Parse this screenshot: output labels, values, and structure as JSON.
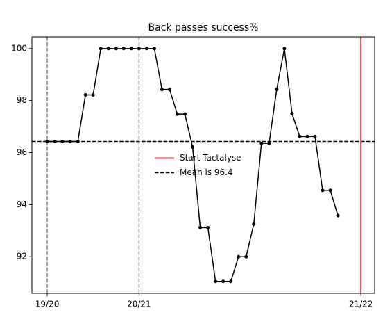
{
  "chart_data": {
    "type": "line",
    "title": "Back passes success%",
    "x": [
      0,
      1,
      2,
      3,
      4,
      5,
      6,
      7,
      8,
      9,
      10,
      11,
      12,
      13,
      14,
      15,
      16,
      17,
      18,
      19,
      20,
      21,
      22,
      23,
      24,
      25,
      26,
      27,
      28,
      29,
      30,
      31,
      32,
      33,
      34,
      35,
      36,
      37,
      38
    ],
    "series": [
      {
        "name": "Back passes success%",
        "color": "#000000",
        "values": [
          96.43,
          96.43,
          96.43,
          96.43,
          96.43,
          98.22,
          98.22,
          100,
          100,
          100,
          100,
          100,
          100,
          100,
          100,
          98.43,
          98.43,
          97.48,
          97.48,
          96.22,
          93.12,
          93.12,
          91.05,
          91.05,
          91.05,
          92,
          92,
          93.25,
          96.36,
          96.36,
          98.43,
          100,
          97.5,
          96.62,
          96.62,
          96.62,
          94.55,
          94.55,
          93.58
        ]
      }
    ],
    "xlim": [
      -2,
      42.8
    ],
    "ylim": [
      90.59,
      100.45
    ],
    "xticks": [
      {
        "value": 0,
        "label": "19/20"
      },
      {
        "value": 12,
        "label": "20/21"
      },
      {
        "value": 41,
        "label": "21/22"
      }
    ],
    "yticks": [
      92,
      94,
      96,
      98,
      100
    ],
    "xtick_lines": {
      "color": "#808080",
      "dashed": true
    },
    "vline": {
      "name": "Start Tactalyse",
      "x": 41,
      "color": "#d9434e"
    },
    "mean": {
      "name": "Mean is 96.4",
      "value": 96.43,
      "color": "#000000"
    },
    "legend": "center"
  }
}
